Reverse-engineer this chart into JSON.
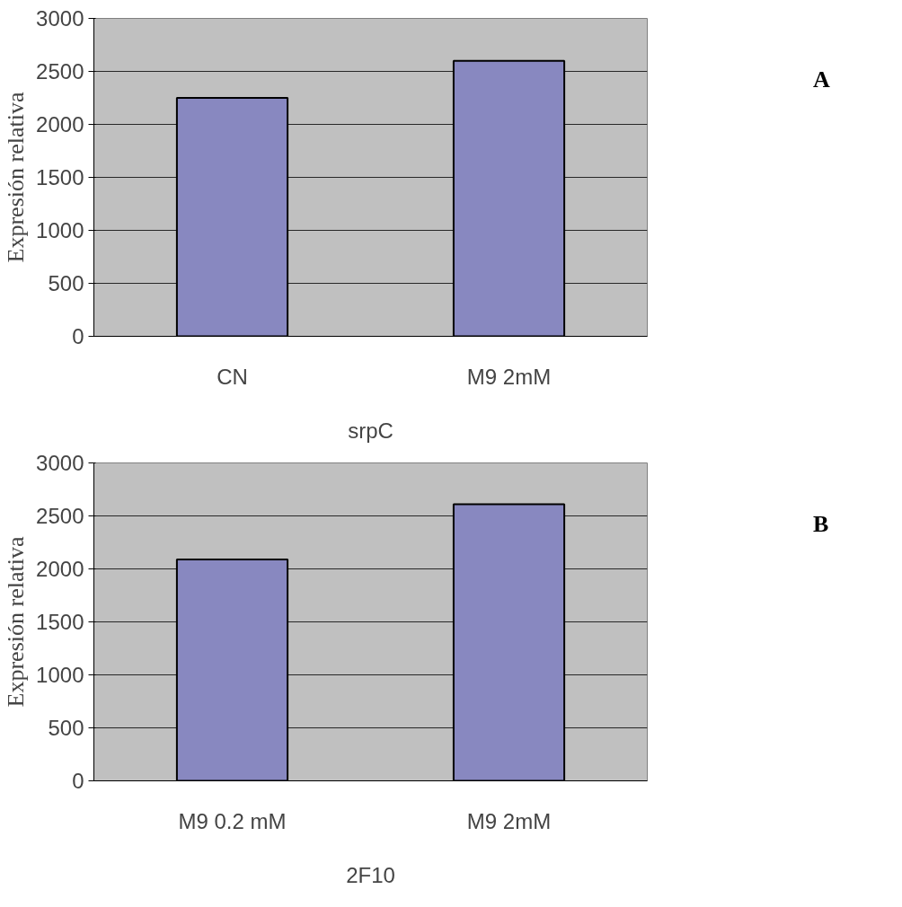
{
  "chart_data": [
    {
      "type": "bar",
      "categories": [
        "CN",
        "M9 2mM"
      ],
      "values": [
        2250,
        2600
      ],
      "color": "#8888c0",
      "xlabel": "srpC",
      "ylabel": "Expresión relativa",
      "ylim": [
        0,
        3000
      ],
      "yticks": [
        0,
        500,
        1000,
        1500,
        2000,
        2500,
        3000
      ],
      "grid": "y",
      "annotations": [
        "A"
      ]
    },
    {
      "type": "bar",
      "categories": [
        "M9 0.2 mM",
        "M9 2mM"
      ],
      "values": [
        2090,
        2610
      ],
      "color": "#8888c0",
      "xlabel": "2F10",
      "ylabel": "Expresión relativa",
      "ylim": [
        0,
        3000
      ],
      "yticks": [
        0,
        500,
        1000,
        1500,
        2000,
        2500,
        3000
      ],
      "grid": "y",
      "annotations": [
        "B"
      ]
    }
  ]
}
